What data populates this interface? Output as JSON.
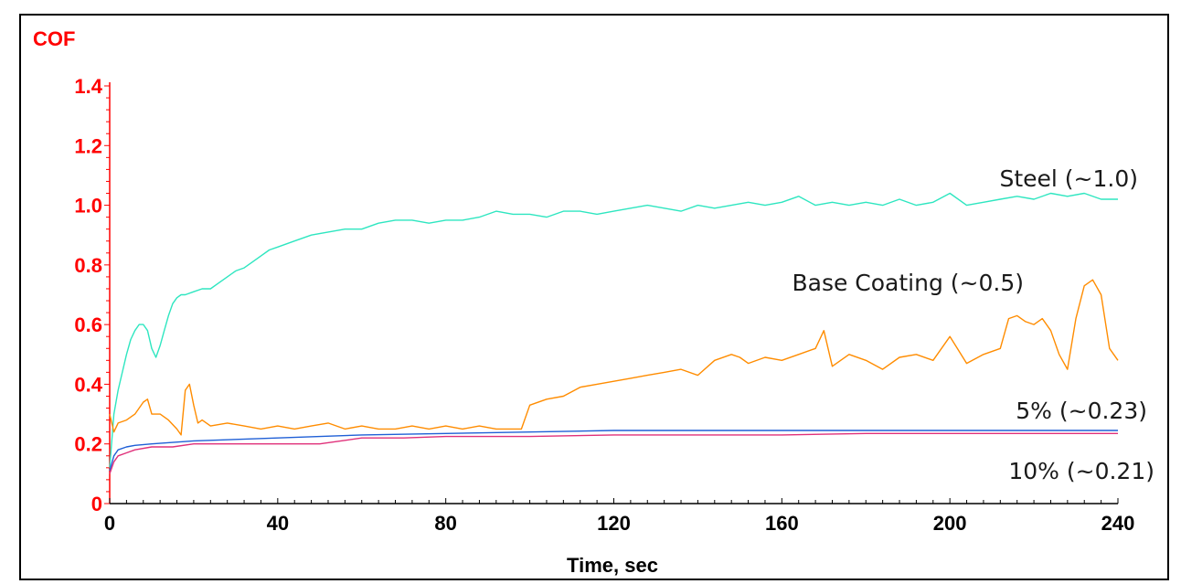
{
  "chart_data": {
    "type": "line",
    "xlabel": "Time, sec",
    "ylabel": "COF",
    "xlim": [
      0,
      240
    ],
    "ylim": [
      0,
      1.4
    ],
    "x_ticks": [
      0,
      40,
      80,
      120,
      160,
      200,
      240
    ],
    "y_ticks": [
      0,
      0.2,
      0.4,
      0.6,
      0.8,
      1.0,
      1.2,
      1.4
    ],
    "y_tick_labels": [
      "0",
      "0.2",
      "0.4",
      "0.6",
      "0.8",
      "1.0",
      "1.2",
      "1.4"
    ],
    "grid": false,
    "legend": "none",
    "axis_color": "#ff0000",
    "annotations": [
      "Steel (~1.0)",
      "Base Coating (~0.5)",
      "5% (~0.23)",
      "10% (~0.21)"
    ],
    "series": [
      {
        "color": "#2ee6c0",
        "x": [
          0,
          1,
          2,
          3,
          4,
          5,
          6,
          7,
          8,
          9,
          10,
          11,
          12,
          13,
          14,
          15,
          16,
          17,
          18,
          20,
          22,
          24,
          26,
          28,
          30,
          32,
          34,
          36,
          38,
          40,
          44,
          48,
          52,
          56,
          60,
          64,
          68,
          72,
          76,
          80,
          84,
          88,
          92,
          96,
          100,
          104,
          108,
          112,
          116,
          120,
          124,
          128,
          132,
          136,
          140,
          144,
          148,
          152,
          156,
          160,
          164,
          168,
          172,
          176,
          180,
          184,
          188,
          192,
          196,
          200,
          204,
          208,
          212,
          216,
          220,
          224,
          228,
          232,
          236,
          240
        ],
        "y": [
          0.12,
          0.3,
          0.38,
          0.44,
          0.5,
          0.55,
          0.58,
          0.6,
          0.6,
          0.58,
          0.52,
          0.49,
          0.53,
          0.58,
          0.63,
          0.67,
          0.69,
          0.7,
          0.7,
          0.71,
          0.72,
          0.72,
          0.74,
          0.76,
          0.78,
          0.79,
          0.81,
          0.83,
          0.85,
          0.86,
          0.88,
          0.9,
          0.91,
          0.92,
          0.92,
          0.94,
          0.95,
          0.95,
          0.94,
          0.95,
          0.95,
          0.96,
          0.98,
          0.97,
          0.97,
          0.96,
          0.98,
          0.98,
          0.97,
          0.98,
          0.99,
          1.0,
          0.99,
          0.98,
          1.0,
          0.99,
          1.0,
          1.01,
          1.0,
          1.01,
          1.03,
          1.0,
          1.01,
          1.0,
          1.01,
          1.0,
          1.02,
          1.0,
          1.01,
          1.04,
          1.0,
          1.01,
          1.02,
          1.03,
          1.02,
          1.04,
          1.03,
          1.04,
          1.02,
          1.02
        ]
      },
      {
        "color": "#ff8c00",
        "x": [
          0,
          1,
          2,
          4,
          6,
          8,
          9,
          10,
          12,
          14,
          16,
          17,
          18,
          19,
          20,
          21,
          22,
          24,
          28,
          32,
          36,
          40,
          44,
          48,
          52,
          56,
          60,
          64,
          68,
          72,
          76,
          80,
          84,
          88,
          92,
          96,
          98,
          100,
          104,
          108,
          112,
          116,
          120,
          124,
          128,
          132,
          136,
          140,
          144,
          148,
          150,
          152,
          156,
          160,
          164,
          168,
          170,
          172,
          176,
          180,
          184,
          188,
          192,
          196,
          200,
          204,
          208,
          212,
          214,
          216,
          218,
          220,
          222,
          224,
          226,
          228,
          230,
          232,
          234,
          236,
          238,
          240
        ],
        "y": [
          0.3,
          0.24,
          0.27,
          0.28,
          0.3,
          0.34,
          0.35,
          0.3,
          0.3,
          0.28,
          0.25,
          0.23,
          0.38,
          0.4,
          0.33,
          0.27,
          0.28,
          0.26,
          0.27,
          0.26,
          0.25,
          0.26,
          0.25,
          0.26,
          0.27,
          0.25,
          0.26,
          0.25,
          0.25,
          0.26,
          0.25,
          0.26,
          0.25,
          0.26,
          0.25,
          0.25,
          0.25,
          0.33,
          0.35,
          0.36,
          0.39,
          0.4,
          0.41,
          0.42,
          0.43,
          0.44,
          0.45,
          0.43,
          0.48,
          0.5,
          0.49,
          0.47,
          0.49,
          0.48,
          0.5,
          0.52,
          0.58,
          0.46,
          0.5,
          0.48,
          0.45,
          0.49,
          0.5,
          0.48,
          0.56,
          0.47,
          0.5,
          0.52,
          0.62,
          0.63,
          0.61,
          0.6,
          0.62,
          0.58,
          0.5,
          0.45,
          0.62,
          0.73,
          0.75,
          0.7,
          0.52,
          0.48
        ]
      },
      {
        "color": "#1f5fd6",
        "x": [
          0,
          1,
          2,
          4,
          6,
          10,
          15,
          20,
          30,
          40,
          60,
          80,
          100,
          120,
          140,
          160,
          180,
          200,
          220,
          240
        ],
        "y": [
          0.11,
          0.16,
          0.18,
          0.19,
          0.195,
          0.2,
          0.205,
          0.21,
          0.215,
          0.22,
          0.23,
          0.235,
          0.24,
          0.245,
          0.245,
          0.245,
          0.245,
          0.245,
          0.245,
          0.245
        ]
      },
      {
        "color": "#e0307a",
        "x": [
          0,
          1,
          2,
          4,
          6,
          10,
          15,
          20,
          25,
          30,
          40,
          50,
          60,
          70,
          80,
          90,
          100,
          120,
          140,
          160,
          180,
          200,
          220,
          240
        ],
        "y": [
          0.1,
          0.14,
          0.16,
          0.17,
          0.18,
          0.19,
          0.19,
          0.2,
          0.2,
          0.2,
          0.2,
          0.2,
          0.22,
          0.22,
          0.225,
          0.225,
          0.225,
          0.23,
          0.23,
          0.23,
          0.235,
          0.235,
          0.235,
          0.235
        ]
      }
    ]
  }
}
